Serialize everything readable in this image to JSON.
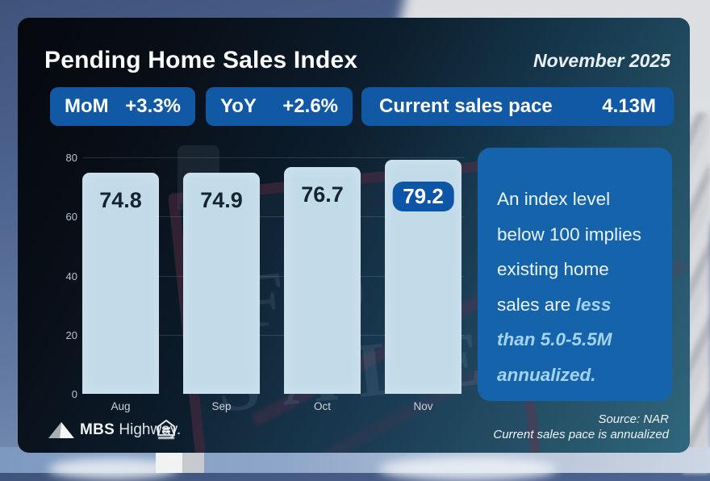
{
  "header": {
    "title": "Pending Home Sales Index",
    "date": "November 2025"
  },
  "stats": [
    {
      "label": "MoM",
      "value": "+3.3%"
    },
    {
      "label": "YoY",
      "value": "+2.6%"
    },
    {
      "label": "Current sales pace",
      "value": "4.13M"
    }
  ],
  "chart_data": {
    "type": "bar",
    "categories": [
      "Aug",
      "Sep",
      "Oct",
      "Nov"
    ],
    "values": [
      74.8,
      74.9,
      76.7,
      79.2
    ],
    "value_labels": [
      "74.8",
      "74.9",
      "76.7",
      "79.2"
    ],
    "highlight_index": 3,
    "title": "Pending Home Sales Index",
    "xlabel": "",
    "ylabel": "",
    "ylim": [
      0,
      80
    ],
    "yticks": [
      0,
      20,
      40,
      60,
      80
    ],
    "grid": "horizontal",
    "legend": "none",
    "bar_color": "#c2dbe9",
    "highlight_label_bg": "#0d55a6",
    "accent_color": "#1159a4"
  },
  "callout": {
    "lines": [
      [
        {
          "t": "An index level",
          "em": false
        }
      ],
      [
        {
          "t": "below 100 implies",
          "em": false
        }
      ],
      [
        {
          "t": "existing home",
          "em": false
        }
      ],
      [
        {
          "t": "sales are ",
          "em": false
        },
        {
          "t": "less",
          "em": true
        }
      ],
      [
        {
          "t": "than 5.0-5.5M",
          "em": true
        }
      ],
      [
        {
          "t": "annualized.",
          "em": true
        }
      ]
    ]
  },
  "footer": {
    "brand_bold": "MBS",
    "brand_light": "Highway.",
    "source_line1": "Source: NAR",
    "source_line2": "Current sales pace is annualized"
  },
  "background": {
    "sign_line1": "FOR",
    "sign_line2": "SALE"
  }
}
